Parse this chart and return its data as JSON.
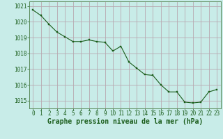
{
  "x": [
    0,
    1,
    2,
    3,
    4,
    5,
    6,
    7,
    8,
    9,
    10,
    11,
    12,
    13,
    14,
    15,
    16,
    17,
    18,
    19,
    20,
    21,
    22,
    23
  ],
  "y": [
    1020.75,
    1020.4,
    1019.85,
    1019.35,
    1019.05,
    1018.75,
    1018.75,
    1018.85,
    1018.75,
    1018.7,
    1018.15,
    1018.45,
    1017.45,
    1017.05,
    1016.65,
    1016.6,
    1016.0,
    1015.55,
    1015.55,
    1014.9,
    1014.85,
    1014.9,
    1015.55,
    1015.7
  ],
  "line_color": "#1a5c1a",
  "marker_color": "#1a5c1a",
  "bg_color": "#c8ece8",
  "grid_color": "#b8a8b0",
  "xlabel": "Graphe pression niveau de la mer (hPa)",
  "xlabel_color": "#1a5c1a",
  "tick_color": "#1a5c1a",
  "ylim": [
    1014.5,
    1021.3
  ],
  "yticks": [
    1015,
    1016,
    1017,
    1018,
    1019,
    1020,
    1021
  ],
  "xticks": [
    0,
    1,
    2,
    3,
    4,
    5,
    6,
    7,
    8,
    9,
    10,
    11,
    12,
    13,
    14,
    15,
    16,
    17,
    18,
    19,
    20,
    21,
    22,
    23
  ],
  "tick_fontsize": 5.5,
  "xlabel_fontsize": 7.0
}
